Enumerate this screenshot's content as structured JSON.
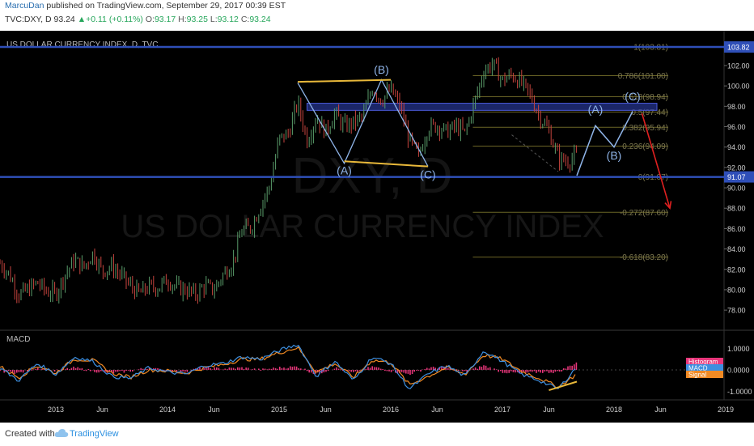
{
  "header": {
    "author": "MarcuDan",
    "published_text": "published on TradingView.com, September 29, 2017 00:39 EST",
    "symbol": "TVC:DXY, D",
    "price": "93.24",
    "change": "+0.11 (+0.11%)",
    "o_label": "O:",
    "o_value": "93.17",
    "h_label": "H:",
    "h_value": "93.25",
    "l_label": "L:",
    "l_value": "93.12",
    "c_label": "C:",
    "c_value": "93.24"
  },
  "footer": {
    "created_with": "Created with",
    "brand": "TradingView"
  },
  "colors": {
    "background": "#000000",
    "candle_up": "#5a9c6a",
    "candle_down": "#c9453f",
    "horizontal_line": "#2f4fb8",
    "zone_fill": "#2a3aa0",
    "fib_line": "#6b6526",
    "fib_text": "#7d7850",
    "wave_line": "#8fb4e8",
    "divergence_line": "#e8b83a",
    "arrow": "#e02020",
    "macd_line": "#3d8fe0",
    "signal_line": "#f08a24",
    "histogram": "#e8357a"
  },
  "chart_data": [
    {
      "type": "line",
      "title": "US DOLLAR CURRENCY INDEX, D, TVC",
      "watermark": "US DOLLAR CURRENCY INDEX",
      "watermark_symbol": "DXY, D",
      "x_tick_labels": [
        "2013",
        "Jun",
        "2014",
        "Jun",
        "2015",
        "Jun",
        "2016",
        "Jun",
        "2017",
        "Jun",
        "2018",
        "Jun",
        "2019"
      ],
      "x_range": [
        "2012-07",
        "2019-03"
      ],
      "y_tick_labels": [
        "78.00",
        "80.00",
        "82.00",
        "84.00",
        "86.00",
        "88.00",
        "90.00",
        "92.00",
        "94.00",
        "96.00",
        "98.00",
        "100.00",
        "102.00"
      ],
      "ylim": [
        76.5,
        104.3
      ],
      "current_price_label": "103.82",
      "support_label": "91.07",
      "series": [
        {
          "x": [
            "2012-07",
            "2012-08",
            "2012-09",
            "2012-10",
            "2012-11",
            "2012-12",
            "2013-01",
            "2013-02",
            "2013-03",
            "2013-04",
            "2013-05",
            "2013-06",
            "2013-07",
            "2013-08",
            "2013-09",
            "2013-10",
            "2013-11",
            "2013-12",
            "2014-01",
            "2014-02",
            "2014-03",
            "2014-04",
            "2014-05",
            "2014-06",
            "2014-07",
            "2014-08",
            "2014-09",
            "2014-10",
            "2014-11",
            "2014-12",
            "2015-01",
            "2015-02",
            "2015-03",
            "2015-04",
            "2015-05",
            "2015-06",
            "2015-07",
            "2015-08",
            "2015-09",
            "2015-10",
            "2015-11",
            "2015-12",
            "2016-01",
            "2016-02",
            "2016-03",
            "2016-04",
            "2016-05",
            "2016-06",
            "2016-07",
            "2016-08",
            "2016-09",
            "2016-10",
            "2016-11",
            "2016-12",
            "2017-01",
            "2017-02",
            "2017-03",
            "2017-04",
            "2017-05",
            "2017-06",
            "2017-07",
            "2017-08",
            "2017-09"
          ],
          "values": [
            82.6,
            81.5,
            79.5,
            80.0,
            80.7,
            79.8,
            79.6,
            81.5,
            82.9,
            82.2,
            83.6,
            81.8,
            82.3,
            81.4,
            80.4,
            79.6,
            80.3,
            80.2,
            81.0,
            80.2,
            80.0,
            79.5,
            80.4,
            80.0,
            81.5,
            82.7,
            85.8,
            86.1,
            88.2,
            90.2,
            94.8,
            95.3,
            98.4,
            94.7,
            96.9,
            95.5,
            97.3,
            96.0,
            96.4,
            97.0,
            99.8,
            98.6,
            99.7,
            98.0,
            94.7,
            93.1,
            95.9,
            96.1,
            95.5,
            96.0,
            95.4,
            98.4,
            101.5,
            102.2,
            100.5,
            101.1,
            100.3,
            99.1,
            97.0,
            95.6,
            92.9,
            92.6,
            93.2
          ]
        }
      ],
      "horizontal_levels": [
        103.82,
        91.07
      ],
      "resistance_zone": [
        97.6,
        98.3
      ],
      "fibonacci_levels": [
        {
          "label": "1(103.81)",
          "value": 103.81
        },
        {
          "label": "0.786(101.00)",
          "value": 101.0
        },
        {
          "label": "0.618(98.94)",
          "value": 98.94
        },
        {
          "label": "0.5(97.44)",
          "value": 97.44
        },
        {
          "label": "0.382(95.94)",
          "value": 95.94
        },
        {
          "label": "0.236(94.09)",
          "value": 94.09
        },
        {
          "label": "0(91.07)",
          "value": 91.07
        },
        {
          "label": "-0.272(87.60)",
          "value": 87.6
        },
        {
          "label": "-0.618(83.20)",
          "value": 83.2
        }
      ],
      "annotations": [
        {
          "text": "(B)",
          "x": "2015-12",
          "y": 101.2
        },
        {
          "text": "(A)",
          "x": "2015-08",
          "y": 91.3
        },
        {
          "text": "(C)",
          "x": "2016-05",
          "y": 90.9
        },
        {
          "text": "(A)",
          "x": "2017-11",
          "y": 97.3
        },
        {
          "text": "(B)",
          "x": "2018-01",
          "y": 92.8
        },
        {
          "text": "(C)",
          "x": "2018-03",
          "y": 98.6
        }
      ],
      "projection_path": {
        "x": [
          "2017-09",
          "2017-11",
          "2018-01",
          "2018-03"
        ],
        "values": [
          91.2,
          96.1,
          94.0,
          97.5
        ]
      },
      "forecast_arrow": {
        "x": [
          "2018-04",
          "2018-07"
        ],
        "values": [
          97.3,
          88.0
        ]
      },
      "wave_path": {
        "x": [
          "2015-03",
          "2015-08",
          "2015-12",
          "2016-05"
        ],
        "values": [
          100.3,
          92.4,
          100.6,
          92.1
        ]
      },
      "divergence_upper": {
        "x": [
          "2015-03",
          "2016-01"
        ],
        "values": [
          100.4,
          100.6
        ]
      },
      "divergence_lower": {
        "x": [
          "2015-08",
          "2016-05"
        ],
        "values": [
          92.6,
          92.1
        ]
      }
    },
    {
      "type": "line",
      "title": "MACD",
      "legend": [
        "Histogram",
        "MACD",
        "Signal"
      ],
      "y_tick_labels": [
        "1.0000",
        "0.0000",
        "-1.0000"
      ],
      "ylim": [
        -1.25,
        1.55
      ],
      "series": [
        {
          "name": "MACD",
          "x": [
            "2012-07",
            "2012-09",
            "2012-11",
            "2013-01",
            "2013-03",
            "2013-05",
            "2013-07",
            "2013-09",
            "2013-11",
            "2014-01",
            "2014-03",
            "2014-05",
            "2014-07",
            "2014-09",
            "2014-11",
            "2015-01",
            "2015-03",
            "2015-05",
            "2015-07",
            "2015-09",
            "2015-11",
            "2016-01",
            "2016-03",
            "2016-05",
            "2016-07",
            "2016-09",
            "2016-11",
            "2017-01",
            "2017-03",
            "2017-05",
            "2017-07",
            "2017-09"
          ],
          "values": [
            0.1,
            -0.5,
            0.3,
            -0.2,
            0.6,
            0.4,
            -0.3,
            -0.4,
            0.1,
            -0.1,
            -0.2,
            0.2,
            0.3,
            0.6,
            0.5,
            0.9,
            1.2,
            -0.3,
            0.4,
            -0.5,
            0.6,
            0.3,
            -0.9,
            -0.2,
            0.2,
            -0.3,
            0.9,
            0.4,
            -0.2,
            -0.5,
            -0.9,
            0.15
          ]
        },
        {
          "name": "Signal",
          "x": [
            "2012-07",
            "2012-09",
            "2012-11",
            "2013-01",
            "2013-03",
            "2013-05",
            "2013-07",
            "2013-09",
            "2013-11",
            "2014-01",
            "2014-03",
            "2014-05",
            "2014-07",
            "2014-09",
            "2014-11",
            "2015-01",
            "2015-03",
            "2015-05",
            "2015-07",
            "2015-09",
            "2015-11",
            "2016-01",
            "2016-03",
            "2016-05",
            "2016-07",
            "2016-09",
            "2016-11",
            "2017-01",
            "2017-03",
            "2017-05",
            "2017-07",
            "2017-09"
          ],
          "values": [
            0.15,
            -0.35,
            0.2,
            -0.15,
            0.5,
            0.45,
            -0.15,
            -0.35,
            0.0,
            -0.05,
            -0.15,
            0.1,
            0.25,
            0.5,
            0.5,
            0.8,
            1.05,
            -0.1,
            0.3,
            -0.35,
            0.45,
            0.35,
            -0.7,
            -0.3,
            0.1,
            -0.2,
            0.7,
            0.5,
            -0.05,
            -0.4,
            -0.8,
            -0.2
          ]
        }
      ],
      "divergence_line": {
        "x": [
          "2017-06",
          "2017-09"
        ],
        "values": [
          -0.95,
          -0.55
        ]
      }
    }
  ]
}
